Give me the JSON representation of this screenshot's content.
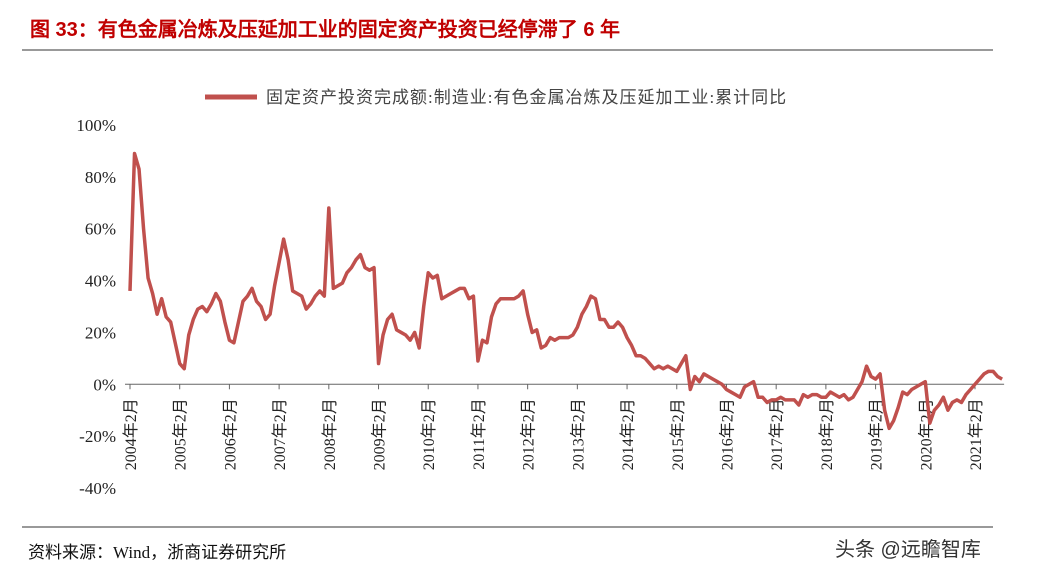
{
  "header": {
    "title": "图 33：有色金属冶炼及压延加工业的固定资产投资已经停滞了 6 年"
  },
  "chart_data": {
    "type": "line",
    "categories": [
      "2004年2月",
      null,
      null,
      null,
      null,
      null,
      null,
      null,
      null,
      null,
      null,
      "2005年2月",
      null,
      null,
      null,
      null,
      null,
      null,
      null,
      null,
      null,
      null,
      "2006年2月",
      null,
      null,
      null,
      null,
      null,
      null,
      null,
      null,
      null,
      null,
      "2007年2月",
      null,
      null,
      null,
      null,
      null,
      null,
      null,
      null,
      null,
      null,
      "2008年2月",
      null,
      null,
      null,
      null,
      null,
      null,
      null,
      null,
      null,
      null,
      "2009年2月",
      null,
      null,
      null,
      null,
      null,
      null,
      null,
      null,
      null,
      null,
      "2010年2月",
      null,
      null,
      null,
      null,
      null,
      null,
      null,
      null,
      null,
      null,
      "2011年2月",
      null,
      null,
      null,
      null,
      null,
      null,
      null,
      null,
      null,
      null,
      "2012年2月",
      null,
      null,
      null,
      null,
      null,
      null,
      null,
      null,
      null,
      null,
      "2013年2月",
      null,
      null,
      null,
      null,
      null,
      null,
      null,
      null,
      null,
      null,
      "2014年2月",
      null,
      null,
      null,
      null,
      null,
      null,
      null,
      null,
      null,
      null,
      "2015年2月",
      null,
      null,
      null,
      null,
      null,
      null,
      null,
      null,
      null,
      null,
      "2016年2月",
      null,
      null,
      null,
      null,
      null,
      null,
      null,
      null,
      null,
      null,
      "2017年2月",
      null,
      null,
      null,
      null,
      null,
      null,
      null,
      null,
      null,
      null,
      "2018年2月",
      null,
      null,
      null,
      null,
      null,
      null,
      null,
      null,
      null,
      null,
      "2019年2月",
      null,
      null,
      null,
      null,
      null,
      null,
      null,
      null,
      null,
      null,
      "2020年2月",
      null,
      null,
      null,
      null,
      null,
      null,
      null,
      null,
      null,
      null,
      "2021年2月",
      null,
      null,
      null,
      null,
      null,
      null
    ],
    "series": [
      {
        "name": "固定资产投资完成额:制造业:有色金属冶炼及压延加工业:累计同比",
        "color": "#c0504d",
        "values": [
          36,
          89,
          83,
          60,
          41,
          35,
          27,
          33,
          26,
          24,
          16,
          8,
          6,
          19,
          25,
          29,
          30,
          28,
          31,
          35,
          32,
          24,
          17,
          16,
          24,
          32,
          34,
          37,
          32,
          30,
          25,
          27,
          38,
          47,
          56,
          48,
          36,
          35,
          34,
          29,
          31,
          34,
          36,
          34,
          68,
          37,
          38,
          39,
          43,
          45,
          48,
          50,
          45,
          44,
          45,
          8,
          19,
          25,
          27,
          21,
          20,
          19,
          17,
          20,
          14,
          30,
          43,
          41,
          42,
          33,
          34,
          35,
          36,
          37,
          37,
          33,
          34,
          9,
          17,
          16,
          26,
          31,
          33,
          33,
          33,
          33,
          34,
          36,
          27,
          20,
          21,
          14,
          15,
          18,
          17,
          18,
          18,
          18,
          19,
          22,
          27,
          30,
          34,
          33,
          25,
          25,
          22,
          22,
          24,
          22,
          18,
          15,
          11,
          11,
          10,
          8,
          6,
          7,
          6,
          7,
          6,
          5,
          8,
          11,
          -2,
          3,
          1,
          4,
          3,
          2,
          1,
          0,
          -2,
          -3,
          -4,
          -5,
          -1,
          0,
          1,
          -5,
          -5,
          -7,
          -6,
          -6,
          -5,
          -6,
          -6,
          -6,
          -8,
          -4,
          -5,
          -4,
          -4,
          -5,
          -5,
          -3,
          -4,
          -5,
          -4,
          -6,
          -5,
          -2,
          1,
          7,
          3,
          2,
          4,
          -10,
          -17,
          -14,
          -9,
          -3,
          -4,
          -2,
          -1,
          0,
          1,
          -15,
          -10,
          -8,
          -5,
          -10,
          -7,
          -6,
          -7,
          -4,
          -2,
          0,
          2,
          4,
          5,
          5,
          3,
          2
        ]
      }
    ],
    "ylim": [
      -40,
      100
    ],
    "yticks": [
      {
        "value": -40,
        "label": "-40%"
      },
      {
        "value": -20,
        "label": "-20%"
      },
      {
        "value": 0,
        "label": "0%"
      },
      {
        "value": 20,
        "label": "20%"
      },
      {
        "value": 40,
        "label": "40%"
      },
      {
        "value": 60,
        "label": "60%"
      },
      {
        "value": 80,
        "label": "80%"
      },
      {
        "value": 100,
        "label": "100%"
      }
    ],
    "legend": "top"
  },
  "footer": {
    "source": "资料来源：Wind，浙商证券研究所",
    "watermark": "头条 @远瞻智库"
  }
}
